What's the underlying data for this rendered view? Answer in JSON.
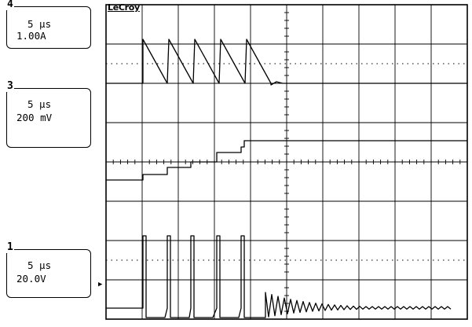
{
  "brand": "LeCroy",
  "channels": [
    {
      "number": "4",
      "timebase": "5 μs",
      "scale": "1.00A"
    },
    {
      "number": "3",
      "timebase": "5 μs",
      "scale": "200 mV"
    },
    {
      "number": "1",
      "timebase": "5 μs",
      "scale": "20.0V"
    }
  ],
  "markers": {
    "ground_marker": "▶"
  }
}
